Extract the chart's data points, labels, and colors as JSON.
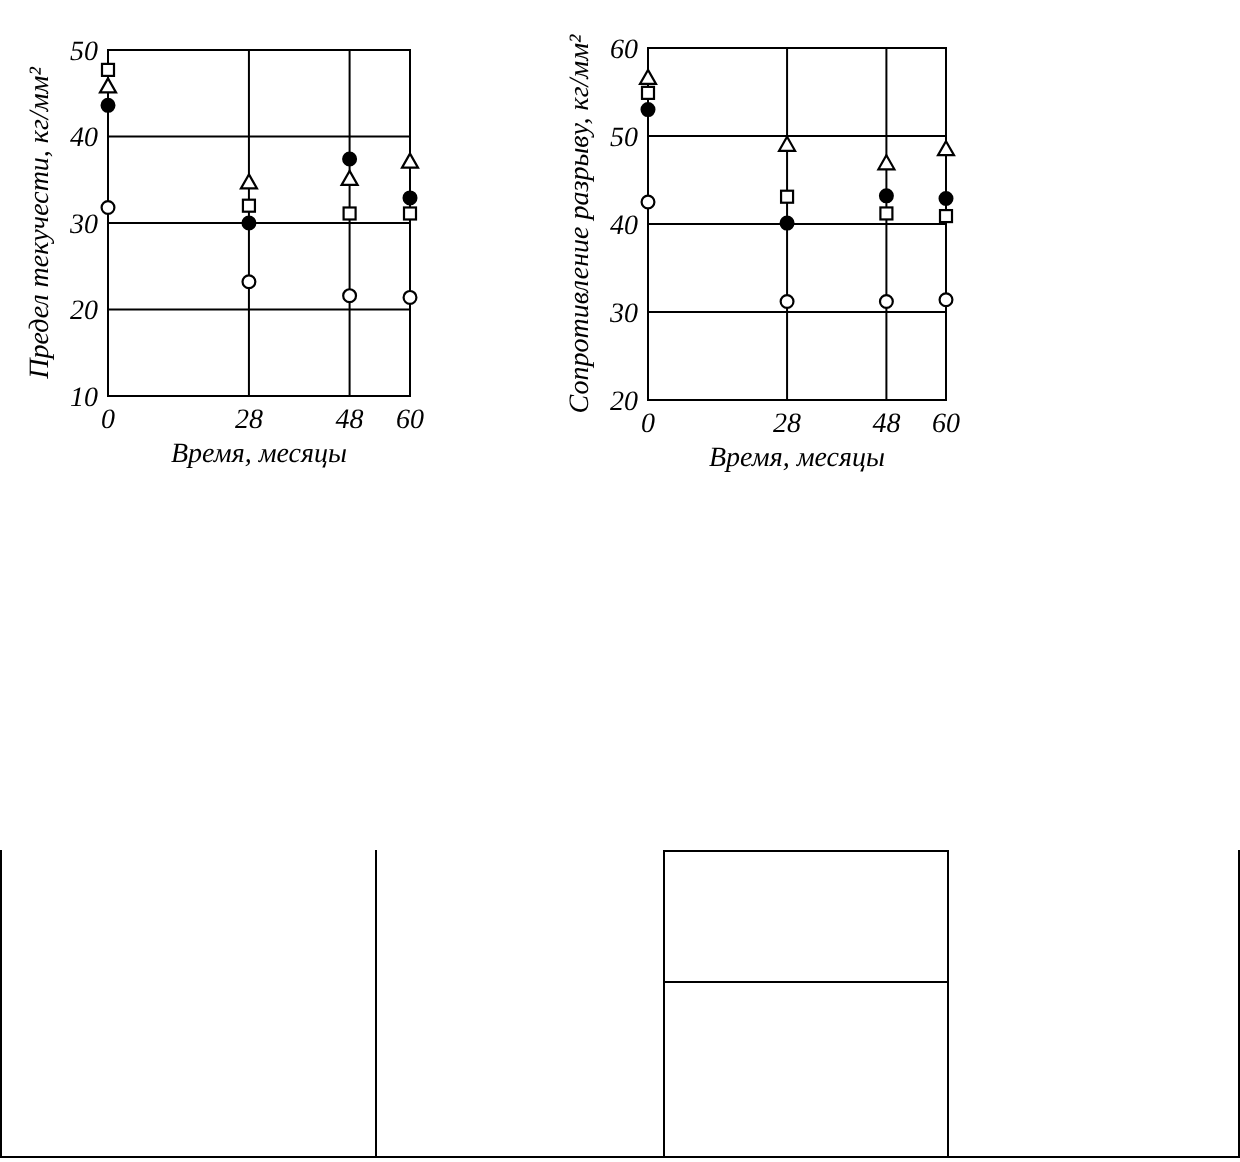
{
  "chart_data": [
    {
      "type": "scatter",
      "xlabel": "Время, месяцы",
      "ylabel": "Предел текучести, кг/мм²",
      "x": [
        0,
        28,
        48,
        60
      ],
      "xlim": [
        0,
        60
      ],
      "xticks": [
        0,
        28,
        48,
        60
      ],
      "ylim": [
        10,
        50
      ],
      "yticks": [
        10,
        20,
        30,
        40,
        50
      ],
      "grid": true,
      "series": [
        {
          "color": "#ffffff",
          "marker": "square",
          "values": [
            47.7,
            32,
            31.1,
            31.1
          ]
        },
        {
          "color": "#ffffff",
          "marker": "triangle",
          "values": [
            45.8,
            34.7,
            35.1,
            37.1
          ]
        },
        {
          "color": "#000000",
          "marker": "circle",
          "values": [
            43.6,
            30,
            37.4,
            32.9
          ]
        },
        {
          "color": "#ffffff",
          "marker": "circle",
          "values": [
            31.8,
            23.2,
            21.6,
            21.4
          ]
        }
      ]
    },
    {
      "type": "scatter",
      "xlabel": "Время, месяцы",
      "ylabel": "Сопротивление разрыву, кг/мм²",
      "x": [
        0,
        28,
        48,
        60
      ],
      "xlim": [
        0,
        60
      ],
      "xticks": [
        0,
        28,
        48,
        60
      ],
      "ylim": [
        20,
        60
      ],
      "yticks": [
        20,
        30,
        40,
        50,
        60
      ],
      "grid": true,
      "series": [
        {
          "color": "#ffffff",
          "marker": "triangle",
          "values": [
            56.6,
            49,
            46.9,
            48.5
          ]
        },
        {
          "color": "#ffffff",
          "marker": "square",
          "values": [
            54.9,
            43.1,
            41.2,
            40.9
          ]
        },
        {
          "color": "#000000",
          "marker": "circle",
          "values": [
            53,
            40.1,
            43.2,
            42.9
          ]
        },
        {
          "color": "#ffffff",
          "marker": "circle",
          "values": [
            42.5,
            31.2,
            31.2,
            31.4
          ]
        }
      ]
    }
  ]
}
